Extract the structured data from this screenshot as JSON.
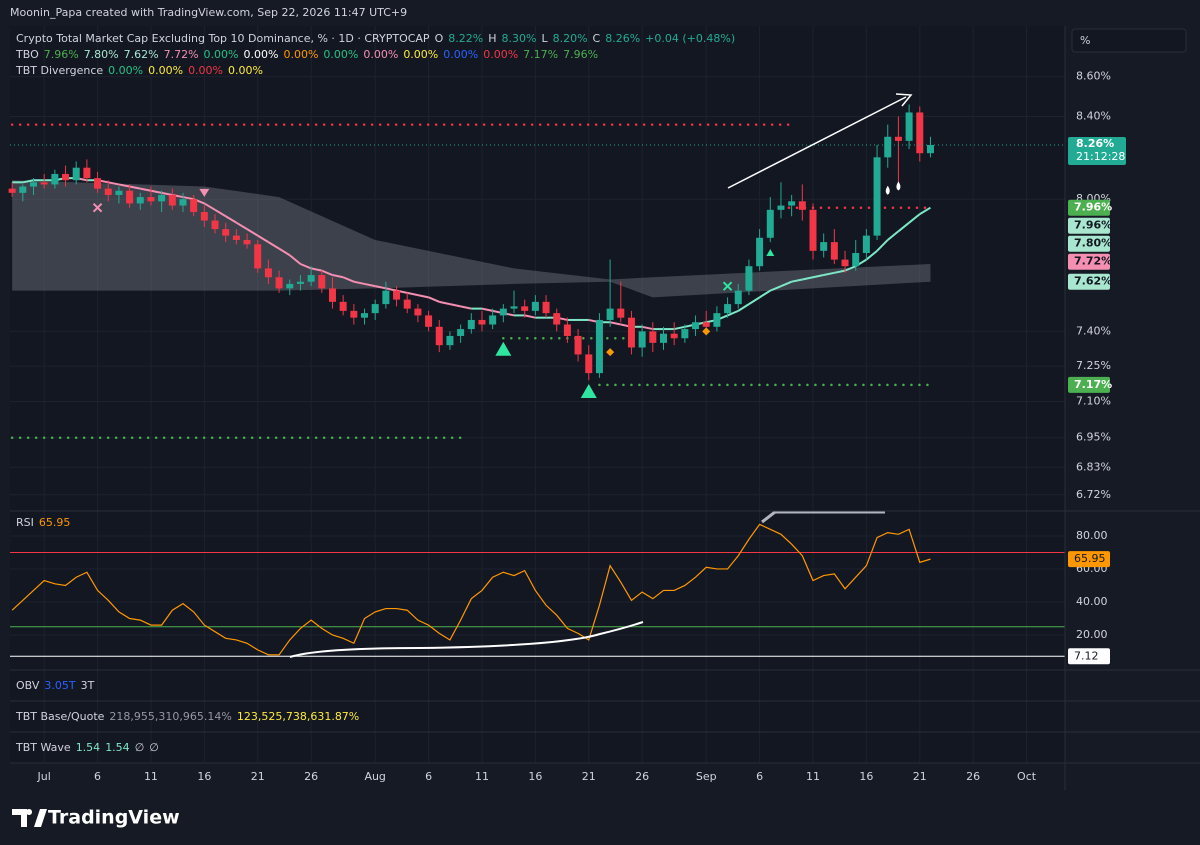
{
  "credit": "Moonin_Papa created with TradingView.com, Sep 22, 2026 11:47 UTC+9",
  "brand": "TradingView",
  "scale_button": "%",
  "chart_data": {
    "type": "candlestick",
    "log": true,
    "grid": true,
    "up_color": "#22ab94",
    "down_color": "#f23645",
    "ylim": [
      6.66,
      8.85
    ],
    "yticks": [
      {
        "value": 8.6,
        "label": "8.60%"
      },
      {
        "value": 8.4,
        "label": "8.40%"
      },
      {
        "value": 8.0,
        "label": "8.00%"
      },
      {
        "value": 7.4,
        "label": "7.40%"
      },
      {
        "value": 7.25,
        "label": "7.25%"
      },
      {
        "value": 7.1,
        "label": "7.10%"
      },
      {
        "value": 6.95,
        "label": "6.95%"
      },
      {
        "value": 6.83,
        "label": "6.83%"
      },
      {
        "value": 6.72,
        "label": "6.72%"
      }
    ],
    "xlim": [
      -0.2,
      98.6
    ],
    "xticks": [
      {
        "value": 3,
        "label": "Jul"
      },
      {
        "value": 8,
        "label": "6"
      },
      {
        "value": 13,
        "label": "11"
      },
      {
        "value": 18,
        "label": "16"
      },
      {
        "value": 23,
        "label": "21"
      },
      {
        "value": 28,
        "label": "26"
      },
      {
        "value": 34,
        "label": "Aug"
      },
      {
        "value": 39,
        "label": "6"
      },
      {
        "value": 44,
        "label": "11"
      },
      {
        "value": 49,
        "label": "16"
      },
      {
        "value": 54,
        "label": "21"
      },
      {
        "value": 59,
        "label": "26"
      },
      {
        "value": 65,
        "label": "Sep"
      },
      {
        "value": 70,
        "label": "6"
      },
      {
        "value": 75,
        "label": "11"
      },
      {
        "value": 80,
        "label": "16"
      },
      {
        "value": 85,
        "label": "21"
      },
      {
        "value": 90,
        "label": "26"
      },
      {
        "value": 95,
        "label": "Oct"
      }
    ],
    "legend": [
      {
        "items": [
          {
            "text": "Crypto Total Market Cap Excluding Top 10 Dominance, % · 1D · CRYPTOCAP",
            "color": "#d1d4dc"
          },
          {
            "text": "O",
            "color": "#d1d4dc"
          },
          {
            "text": "8.22%",
            "color": "#22ab94"
          },
          {
            "text": "H",
            "color": "#d1d4dc"
          },
          {
            "text": "8.30%",
            "color": "#22ab94"
          },
          {
            "text": "L",
            "color": "#d1d4dc"
          },
          {
            "text": "8.20%",
            "color": "#22ab94"
          },
          {
            "text": "C",
            "color": "#d1d4dc"
          },
          {
            "text": "8.26%",
            "color": "#22ab94"
          },
          {
            "text": "+0.04 (+0.48%)",
            "color": "#22ab94"
          }
        ]
      },
      {
        "items": [
          {
            "text": "TBO",
            "color": "#d1d4dc"
          },
          {
            "text": "7.96%",
            "color": "#4caf50"
          },
          {
            "text": "7.80%",
            "color": "#a8e6cf"
          },
          {
            "text": "7.62%",
            "color": "#a8e6cf"
          },
          {
            "text": "7.72%",
            "color": "#f48fb1"
          },
          {
            "text": "0.00%",
            "color": "#26c281"
          },
          {
            "text": "0.00%",
            "color": "#ffffff"
          },
          {
            "text": "0.00%",
            "color": "#ff9800"
          },
          {
            "text": "0.00%",
            "color": "#26c281"
          },
          {
            "text": "0.00%",
            "color": "#f48fb1"
          },
          {
            "text": "0.00%",
            "color": "#ffeb3b"
          },
          {
            "text": "0.00%",
            "color": "#2962ff"
          },
          {
            "text": "0.00%",
            "color": "#f23645"
          },
          {
            "text": "7.17%",
            "color": "#4caf50"
          },
          {
            "text": "7.96%",
            "color": "#4caf50"
          }
        ]
      },
      {
        "items": [
          {
            "text": "TBT Divergence",
            "color": "#d1d4dc"
          },
          {
            "text": "0.00%",
            "color": "#26c281"
          },
          {
            "text": "0.00%",
            "color": "#ffeb3b"
          },
          {
            "text": "0.00%",
            "color": "#f23645"
          },
          {
            "text": "0.00%",
            "color": "#ffeb3b"
          }
        ]
      }
    ],
    "candles": [
      [
        8.05,
        8.08,
        8.01,
        8.03
      ],
      [
        8.03,
        8.07,
        7.99,
        8.06
      ],
      [
        8.06,
        8.1,
        8.02,
        8.08
      ],
      [
        8.08,
        8.12,
        8.05,
        8.07
      ],
      [
        8.07,
        8.14,
        8.05,
        8.12
      ],
      [
        8.12,
        8.16,
        8.06,
        8.09
      ],
      [
        8.09,
        8.18,
        8.07,
        8.15
      ],
      [
        8.15,
        8.19,
        8.08,
        8.1
      ],
      [
        8.1,
        8.13,
        8.03,
        8.05
      ],
      [
        8.05,
        8.09,
        7.99,
        8.02
      ],
      [
        8.02,
        8.06,
        7.98,
        8.04
      ],
      [
        8.04,
        8.07,
        7.96,
        7.98
      ],
      [
        7.98,
        8.03,
        7.95,
        8.01
      ],
      [
        8.01,
        8.06,
        7.97,
        7.99
      ],
      [
        7.99,
        8.04,
        7.94,
        8.02
      ],
      [
        8.02,
        8.05,
        7.95,
        7.97
      ],
      [
        7.97,
        8.03,
        7.94,
        8.0
      ],
      [
        8.0,
        8.02,
        7.92,
        7.94
      ],
      [
        7.94,
        7.97,
        7.87,
        7.9
      ],
      [
        7.9,
        7.93,
        7.84,
        7.86
      ],
      [
        7.86,
        7.89,
        7.8,
        7.83
      ],
      [
        7.83,
        7.86,
        7.79,
        7.81
      ],
      [
        7.81,
        7.84,
        7.77,
        7.79
      ],
      [
        7.79,
        7.81,
        7.66,
        7.68
      ],
      [
        7.68,
        7.72,
        7.61,
        7.64
      ],
      [
        7.64,
        7.67,
        7.57,
        7.59
      ],
      [
        7.59,
        7.63,
        7.56,
        7.61
      ],
      [
        7.61,
        7.65,
        7.58,
        7.62
      ],
      [
        7.62,
        7.69,
        7.6,
        7.65
      ],
      [
        7.65,
        7.67,
        7.57,
        7.59
      ],
      [
        7.59,
        7.64,
        7.5,
        7.53
      ],
      [
        7.53,
        7.56,
        7.47,
        7.49
      ],
      [
        7.49,
        7.52,
        7.43,
        7.46
      ],
      [
        7.46,
        7.5,
        7.43,
        7.48
      ],
      [
        7.48,
        7.54,
        7.45,
        7.52
      ],
      [
        7.52,
        7.62,
        7.5,
        7.58
      ],
      [
        7.58,
        7.6,
        7.51,
        7.54
      ],
      [
        7.54,
        7.57,
        7.48,
        7.5
      ],
      [
        7.5,
        7.52,
        7.44,
        7.47
      ],
      [
        7.47,
        7.49,
        7.4,
        7.42
      ],
      [
        7.42,
        7.45,
        7.31,
        7.34
      ],
      [
        7.34,
        7.4,
        7.32,
        7.38
      ],
      [
        7.38,
        7.43,
        7.35,
        7.41
      ],
      [
        7.41,
        7.48,
        7.39,
        7.45
      ],
      [
        7.45,
        7.49,
        7.4,
        7.43
      ],
      [
        7.43,
        7.5,
        7.41,
        7.47
      ],
      [
        7.47,
        7.52,
        7.44,
        7.5
      ],
      [
        7.5,
        7.58,
        7.48,
        7.51
      ],
      [
        7.51,
        7.54,
        7.46,
        7.49
      ],
      [
        7.49,
        7.56,
        7.47,
        7.53
      ],
      [
        7.53,
        7.56,
        7.46,
        7.48
      ],
      [
        7.48,
        7.5,
        7.4,
        7.43
      ],
      [
        7.43,
        7.46,
        7.35,
        7.38
      ],
      [
        7.38,
        7.41,
        7.27,
        7.3
      ],
      [
        7.3,
        7.34,
        7.19,
        7.22
      ],
      [
        7.22,
        7.48,
        7.2,
        7.45
      ],
      [
        7.45,
        7.72,
        7.42,
        7.5
      ],
      [
        7.5,
        7.62,
        7.44,
        7.46
      ],
      [
        7.46,
        7.49,
        7.3,
        7.33
      ],
      [
        7.33,
        7.43,
        7.29,
        7.4
      ],
      [
        7.4,
        7.44,
        7.31,
        7.35
      ],
      [
        7.35,
        7.42,
        7.32,
        7.39
      ],
      [
        7.39,
        7.44,
        7.34,
        7.37
      ],
      [
        7.37,
        7.43,
        7.35,
        7.41
      ],
      [
        7.41,
        7.47,
        7.38,
        7.44
      ],
      [
        7.44,
        7.49,
        7.4,
        7.42
      ],
      [
        7.42,
        7.51,
        7.4,
        7.48
      ],
      [
        7.48,
        7.55,
        7.46,
        7.52
      ],
      [
        7.52,
        7.61,
        7.5,
        7.58
      ],
      [
        7.58,
        7.72,
        7.56,
        7.69
      ],
      [
        7.69,
        7.86,
        7.67,
        7.82
      ],
      [
        7.82,
        8.01,
        7.8,
        7.95
      ],
      [
        7.95,
        8.08,
        7.91,
        7.97
      ],
      [
        7.97,
        8.02,
        7.92,
        7.99
      ],
      [
        7.99,
        8.07,
        7.9,
        7.95
      ],
      [
        7.95,
        7.98,
        7.72,
        7.76
      ],
      [
        7.76,
        7.84,
        7.73,
        7.8
      ],
      [
        7.8,
        7.86,
        7.7,
        7.72
      ],
      [
        7.72,
        7.76,
        7.66,
        7.69
      ],
      [
        7.69,
        7.81,
        7.67,
        7.75
      ],
      [
        7.75,
        7.86,
        7.72,
        7.83
      ],
      [
        7.83,
        8.26,
        7.81,
        8.2
      ],
      [
        8.2,
        8.36,
        8.15,
        8.3
      ],
      [
        8.3,
        8.4,
        8.06,
        8.28
      ],
      [
        8.28,
        8.46,
        8.24,
        8.42
      ],
      [
        8.42,
        8.45,
        8.18,
        8.22
      ],
      [
        8.22,
        8.3,
        8.2,
        8.26
      ]
    ],
    "ma": {
      "rise_color": "#7ee8c6",
      "fall_color": "#f48fb1",
      "values": [
        8.08,
        8.08,
        8.09,
        8.09,
        8.09,
        8.1,
        8.1,
        8.09,
        8.09,
        8.08,
        8.07,
        8.06,
        8.05,
        8.04,
        8.03,
        8.02,
        8.01,
        8.0,
        7.98,
        7.95,
        7.92,
        7.89,
        7.86,
        7.83,
        7.8,
        7.77,
        7.74,
        7.7,
        7.68,
        7.67,
        7.65,
        7.64,
        7.62,
        7.61,
        7.6,
        7.59,
        7.58,
        7.57,
        7.56,
        7.55,
        7.53,
        7.52,
        7.51,
        7.5,
        7.5,
        7.49,
        7.48,
        7.47,
        7.47,
        7.46,
        7.46,
        7.46,
        7.45,
        7.45,
        7.45,
        7.44,
        7.44,
        7.43,
        7.42,
        7.42,
        7.41,
        7.41,
        7.41,
        7.42,
        7.43,
        7.44,
        7.45,
        7.47,
        7.49,
        7.52,
        7.55,
        7.58,
        7.6,
        7.62,
        7.63,
        7.64,
        7.65,
        7.66,
        7.67,
        7.69,
        7.72,
        7.76,
        7.81,
        7.85,
        7.89,
        7.93,
        7.96
      ]
    },
    "band": {
      "color": "#8a8f9c",
      "x": [
        0,
        18,
        25,
        34,
        47,
        56,
        60,
        86
      ],
      "upper": [
        8.09,
        8.06,
        8.01,
        7.81,
        7.68,
        7.63,
        7.64,
        7.7
      ],
      "lower": [
        7.58,
        7.58,
        7.58,
        7.59,
        7.61,
        7.62,
        7.55,
        7.62
      ]
    },
    "levels": [
      {
        "value": 8.36,
        "from": 0,
        "to": 73,
        "color": "#f23645"
      },
      {
        "value": 7.96,
        "from": 72,
        "to": 86,
        "color": "#f23645"
      },
      {
        "value": 6.95,
        "from": 0,
        "to": 42,
        "color": "#4caf50"
      },
      {
        "value": 7.37,
        "from": 46,
        "to": 58,
        "color": "#4caf50"
      },
      {
        "value": 7.17,
        "from": 55,
        "to": 86,
        "color": "#4caf50"
      }
    ],
    "markers": [
      {
        "index": 8,
        "value": 7.96,
        "shape": "cross",
        "color": "#f48fb1"
      },
      {
        "index": 18,
        "value": 8.03,
        "shape": "triangle-down",
        "color": "#f48fb1"
      },
      {
        "index": 46,
        "value": 7.32,
        "shape": "triangle-up",
        "color": "#2ee6a0"
      },
      {
        "index": 54,
        "value": 7.14,
        "shape": "triangle-up",
        "color": "#2ee6a0"
      },
      {
        "index": 56,
        "value": 7.31,
        "shape": "diamond",
        "color": "#ff9800"
      },
      {
        "index": 65,
        "value": 7.4,
        "shape": "diamond",
        "color": "#ff9800"
      },
      {
        "index": 67,
        "value": 7.6,
        "shape": "cross",
        "color": "#2ee6a0"
      },
      {
        "index": 71,
        "value": 7.75,
        "shape": "small-triangle-up",
        "color": "#2ee6a0"
      },
      {
        "index": 82,
        "value": 8.04,
        "shape": "drop",
        "color": "#ffffff"
      },
      {
        "index": 83,
        "value": 8.06,
        "shape": "drop",
        "color": "#ffffff"
      }
    ],
    "last": {
      "value": 8.26,
      "label": "8.26%",
      "countdown": "21:12:28",
      "color": "#22ab94"
    },
    "tags": [
      {
        "value": 7.96,
        "label": "7.96%",
        "color": "#4caf50",
        "text_color": "#ffffff"
      },
      {
        "value": 7.96,
        "label": "7.96%",
        "color": "#a8e6cf",
        "text_color": "#131722"
      },
      {
        "value": 7.8,
        "label": "7.80%",
        "color": "#a8e6cf",
        "text_color": "#131722"
      },
      {
        "value": 7.72,
        "label": "7.72%",
        "color": "#f48fb1",
        "text_color": "#131722"
      },
      {
        "value": 7.62,
        "label": "7.62%",
        "color": "#a8e6cf",
        "text_color": "#131722"
      },
      {
        "value": 7.17,
        "label": "7.17%",
        "color": "#4caf50",
        "text_color": "#ffffff"
      }
    ],
    "rsi": {
      "legend": {
        "items": [
          {
            "text": "RSI",
            "color": "#d1d4dc"
          },
          {
            "text": "65.95",
            "color": "#ff9800"
          }
        ]
      },
      "color": "#ff9800",
      "ylim": [
        -1.2,
        94.5
      ],
      "yticks": [
        {
          "value": 80,
          "label": "80.00"
        },
        {
          "value": 60,
          "label": "60.00"
        },
        {
          "value": 40,
          "label": "40.00"
        },
        {
          "value": 20,
          "label": "20.00"
        }
      ],
      "values": [
        35,
        41,
        47,
        53,
        51,
        50,
        55,
        58,
        47,
        41,
        34,
        30,
        29,
        26,
        26,
        35,
        39,
        34,
        26,
        22,
        18,
        17,
        15,
        11,
        8,
        8,
        17,
        24,
        29,
        24,
        20,
        18,
        15,
        30,
        34,
        36,
        36,
        35,
        29,
        26,
        21,
        17,
        29,
        42,
        47,
        55,
        58,
        56,
        59,
        47,
        38,
        32,
        24,
        21,
        17,
        38,
        62,
        52,
        41,
        46,
        42,
        47,
        47,
        50,
        55,
        61,
        60,
        60,
        68,
        78,
        87,
        84,
        81,
        75,
        68,
        53,
        56,
        57,
        48,
        55,
        62,
        79,
        82,
        81,
        84,
        64,
        65.95
      ],
      "levels": [
        {
          "value": 70,
          "color": "#f23645"
        },
        {
          "value": 25,
          "color": "#4caf50"
        },
        {
          "value": 7.12,
          "color": "#ffffff"
        }
      ],
      "tags": [
        {
          "value": 65.95,
          "label": "65.95",
          "color": "#ff9800",
          "text_color": "#131722"
        },
        {
          "value": 7.12,
          "label": "7.12",
          "color": "#ffffff",
          "text_color": "#131722"
        }
      ]
    },
    "indicators": [
      {
        "items": [
          {
            "text": "OBV",
            "color": "#d1d4dc"
          },
          {
            "text": "3.05T",
            "color": "#2962ff"
          },
          {
            "text": "3T",
            "color": "#d1d4dc"
          }
        ]
      },
      {
        "items": [
          {
            "text": "TBT Base/Quote",
            "color": "#d1d4dc"
          },
          {
            "text": "218,955,310,965.14%",
            "color": "#9598a1"
          },
          {
            "text": "123,525,738,631.87%",
            "color": "#ffeb3b"
          }
        ]
      },
      {
        "items": [
          {
            "text": "TBT Wave",
            "color": "#d1d4dc"
          },
          {
            "text": "1.54",
            "color": "#7ee8c6"
          },
          {
            "text": "1.54",
            "color": "#7ee8c6"
          },
          {
            "text": "∅",
            "color": "#d1d4dc"
          },
          {
            "text": "∅",
            "color": "#d1d4dc"
          }
        ]
      }
    ]
  }
}
